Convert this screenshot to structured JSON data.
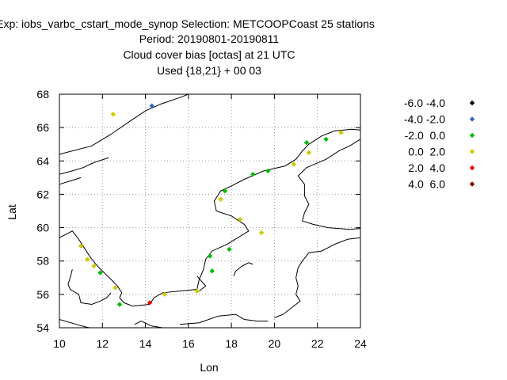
{
  "chart_data": {
    "type": "scatter",
    "title_lines": [
      "Exp: iobs_varbc_cstart_mode_synop   Selection: METCOOPCoast     25 stations",
      "Period: 20190801-20190811",
      "Cloud cover bias [octas] at  21 UTC",
      "Used {18,21} + 00 03"
    ],
    "xlabel": "Lon",
    "ylabel": "Lat",
    "xlim": [
      10,
      24
    ],
    "ylim": [
      54,
      68
    ],
    "xticks": [
      10,
      12,
      14,
      16,
      18,
      20,
      22,
      24
    ],
    "yticks": [
      54,
      56,
      58,
      60,
      62,
      64,
      66,
      68
    ],
    "grid": true,
    "legend_position": "right",
    "classes": [
      {
        "label": "-6.0 -4.0",
        "color": "#000000"
      },
      {
        "label": "-4.0 -2.0",
        "color": "#3366cc"
      },
      {
        "label": "-2.0  0.0",
        "color": "#00bb00"
      },
      {
        "label": " 0.0  2.0",
        "color": "#cccc00"
      },
      {
        "label": " 2.0  4.0",
        "color": "#ee0000"
      },
      {
        "label": " 4.0  6.0",
        "color": "#880000"
      }
    ],
    "points": [
      {
        "lon": 14.3,
        "lat": 67.3,
        "class": 1
      },
      {
        "lon": 12.5,
        "lat": 66.8,
        "class": 3
      },
      {
        "lon": 23.1,
        "lat": 65.7,
        "class": 3
      },
      {
        "lon": 22.4,
        "lat": 65.3,
        "class": 2
      },
      {
        "lon": 21.5,
        "lat": 65.1,
        "class": 2
      },
      {
        "lon": 21.6,
        "lat": 64.5,
        "class": 3
      },
      {
        "lon": 20.9,
        "lat": 63.8,
        "class": 3
      },
      {
        "lon": 19.7,
        "lat": 63.4,
        "class": 2
      },
      {
        "lon": 19.0,
        "lat": 63.2,
        "class": 2
      },
      {
        "lon": 17.7,
        "lat": 62.2,
        "class": 2
      },
      {
        "lon": 17.5,
        "lat": 61.7,
        "class": 3
      },
      {
        "lon": 18.4,
        "lat": 60.5,
        "class": 3
      },
      {
        "lon": 19.4,
        "lat": 59.7,
        "class": 3
      },
      {
        "lon": 11.0,
        "lat": 58.9,
        "class": 3
      },
      {
        "lon": 17.9,
        "lat": 58.7,
        "class": 2
      },
      {
        "lon": 17.0,
        "lat": 58.3,
        "class": 2
      },
      {
        "lon": 11.3,
        "lat": 58.1,
        "class": 3
      },
      {
        "lon": 11.6,
        "lat": 57.7,
        "class": 3
      },
      {
        "lon": 17.1,
        "lat": 57.4,
        "class": 2
      },
      {
        "lon": 11.9,
        "lat": 57.3,
        "class": 2
      },
      {
        "lon": 12.6,
        "lat": 56.4,
        "class": 3
      },
      {
        "lon": 16.4,
        "lat": 56.2,
        "class": 3
      },
      {
        "lon": 14.9,
        "lat": 56.0,
        "class": 3
      },
      {
        "lon": 14.2,
        "lat": 55.5,
        "class": 4
      },
      {
        "lon": 12.8,
        "lat": 55.4,
        "class": 2
      }
    ],
    "coastlines": [
      [
        [
          10,
          64.4
        ],
        [
          11.5,
          64.9
        ],
        [
          12.4,
          65.6
        ],
        [
          13.3,
          66.4
        ],
        [
          14.0,
          67.0
        ],
        [
          14.7,
          67.4
        ],
        [
          15.6,
          67.8
        ],
        [
          16.0,
          68.0
        ]
      ],
      [
        [
          10,
          63.2
        ],
        [
          10.6,
          63.4
        ],
        [
          11.1,
          63.6
        ],
        [
          11.6,
          63.9
        ],
        [
          12.3,
          64.2
        ]
      ],
      [
        [
          10,
          62.6
        ],
        [
          10.5,
          62.8
        ],
        [
          11.0,
          63.0
        ]
      ],
      [
        [
          10,
          59.4
        ],
        [
          10.6,
          59.8
        ],
        [
          10.9,
          59.3
        ],
        [
          11.1,
          58.9
        ],
        [
          11.4,
          58.3
        ],
        [
          11.7,
          57.8
        ],
        [
          12.0,
          57.4
        ],
        [
          12.4,
          56.9
        ],
        [
          12.7,
          56.5
        ],
        [
          12.9,
          56.1
        ],
        [
          12.8,
          55.8
        ],
        [
          13.0,
          55.5
        ],
        [
          13.4,
          55.3
        ],
        [
          14.2,
          55.4
        ],
        [
          14.4,
          55.8
        ],
        [
          14.8,
          56.1
        ],
        [
          15.6,
          56.2
        ],
        [
          16.4,
          56.3
        ],
        [
          16.5,
          56.9
        ],
        [
          16.7,
          57.5
        ],
        [
          16.8,
          58.1
        ],
        [
          17.1,
          58.6
        ],
        [
          17.8,
          59.0
        ],
        [
          18.3,
          59.4
        ],
        [
          18.8,
          59.8
        ],
        [
          18.6,
          60.2
        ],
        [
          18.0,
          60.7
        ],
        [
          17.3,
          61.0
        ],
        [
          17.2,
          61.6
        ],
        [
          17.5,
          62.2
        ],
        [
          18.0,
          62.5
        ],
        [
          18.6,
          62.9
        ],
        [
          19.5,
          63.4
        ],
        [
          20.5,
          63.7
        ],
        [
          21.0,
          64.1
        ],
        [
          21.3,
          64.6
        ],
        [
          21.6,
          65.0
        ],
        [
          22.2,
          65.5
        ],
        [
          22.8,
          65.8
        ],
        [
          23.6,
          65.9
        ],
        [
          24,
          65.85
        ]
      ],
      [
        [
          24,
          65.3
        ],
        [
          23.5,
          64.9
        ],
        [
          23.0,
          64.6
        ],
        [
          22.4,
          64.1
        ],
        [
          21.5,
          63.6
        ],
        [
          21.1,
          63.1
        ],
        [
          21.4,
          62.6
        ],
        [
          21.4,
          61.9
        ],
        [
          21.6,
          61.4
        ],
        [
          21.4,
          60.9
        ],
        [
          21.3,
          60.4
        ],
        [
          21.8,
          60.2
        ],
        [
          22.5,
          60.0
        ],
        [
          23.5,
          59.9
        ],
        [
          24,
          59.95
        ]
      ],
      [
        [
          24,
          59.4
        ],
        [
          23.4,
          59.3
        ],
        [
          22.8,
          59.0
        ],
        [
          22.2,
          58.6
        ],
        [
          21.6,
          58.5
        ],
        [
          21.3,
          58.0
        ],
        [
          21.1,
          57.6
        ],
        [
          21.0,
          57.0
        ],
        [
          21.1,
          56.5
        ],
        [
          21.0,
          56.0
        ],
        [
          21.2,
          55.6
        ],
        [
          20.9,
          55.3
        ],
        [
          20.4,
          54.8
        ],
        [
          20.0,
          54.6
        ]
      ],
      [
        [
          10,
          54.5
        ],
        [
          10.8,
          54.2
        ],
        [
          11.2,
          54.05
        ],
        [
          11.4,
          54.0
        ]
      ],
      [
        [
          13.5,
          54.2
        ],
        [
          13.8,
          54.4
        ],
        [
          14.3,
          54.1
        ],
        [
          14.8,
          54.0
        ]
      ],
      [
        [
          15.6,
          54.2
        ],
        [
          16.5,
          54.3
        ],
        [
          17.4,
          54.7
        ],
        [
          18.2,
          54.8
        ],
        [
          18.6,
          54.5
        ],
        [
          19.2,
          54.4
        ],
        [
          19.7,
          54.4
        ]
      ],
      [
        [
          18.1,
          57.1
        ],
        [
          18.2,
          57.4
        ],
        [
          18.5,
          57.7
        ],
        [
          18.8,
          57.9
        ],
        [
          19.0,
          57.8
        ]
      ],
      [
        [
          16.4,
          57.1
        ],
        [
          16.8,
          56.5
        ],
        [
          16.5,
          56.2
        ]
      ],
      [
        [
          12.4,
          56.1
        ],
        [
          12.2,
          55.8
        ],
        [
          11.9,
          55.6
        ],
        [
          11.5,
          55.4
        ],
        [
          11.0,
          55.5
        ],
        [
          10.9,
          56.0
        ],
        [
          10.5,
          56.3
        ],
        [
          10.4,
          56.6
        ],
        [
          10.5,
          57.0
        ],
        [
          10.6,
          57.5
        ]
      ]
    ]
  }
}
